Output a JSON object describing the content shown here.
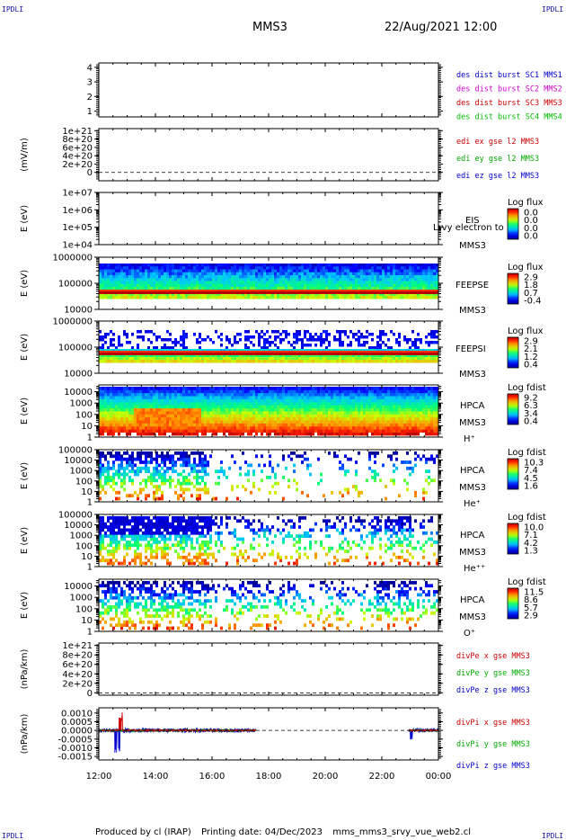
{
  "page": {
    "corner_tl": "IPDLI",
    "corner_tr": "IPDLI",
    "corner_bl": "IPDLI",
    "corner_br": "IPDLI",
    "title": "MMS3",
    "datetime": "22/Aug/2021 12:00",
    "footer_produced": "Produced by cl (IRAP)",
    "footer_printed": "Printing date: 04/Dec/2023",
    "footer_file": "mms_mms3_srvy_vue_web2.cl"
  },
  "chart_data": {
    "type": "multi-panel time series / spectrogram",
    "x_ticks": [
      "12:00",
      "14:00",
      "16:00",
      "18:00",
      "20:00",
      "22:00",
      "00:00"
    ],
    "xlim_hours": [
      12,
      24
    ],
    "panels": [
      {
        "id": "des-dist",
        "type": "line",
        "ylabel": "",
        "y_ticks": [
          "4",
          "3",
          "2",
          "1"
        ],
        "ylim": [
          0.6,
          4.3
        ],
        "right_labels": [
          {
            "text": "des dist burst SC1 MMS1",
            "color": "#0000cc"
          },
          {
            "text": "des dist burst SC2 MMS2",
            "color": "#cc00cc"
          },
          {
            "text": "des dist burst SC3 MMS3",
            "color": "#cc0000"
          },
          {
            "text": "des dist burst SC4 MMS4",
            "color": "#00bb00"
          }
        ]
      },
      {
        "id": "edi",
        "type": "line",
        "ylabel": "(mV/m)",
        "y_ticks": [
          "1e+21",
          "8e+20",
          "6e+20",
          "4e+20",
          "2e+20",
          "0"
        ],
        "ylim": [
          -2e+20,
          1.05e+21
        ],
        "zero_line": true,
        "right_labels": [
          {
            "text": "edi ex gse l2 MMS3",
            "color": "#cc0000"
          },
          {
            "text": "edi ey gse l2 MMS3",
            "color": "#00aa00"
          },
          {
            "text": "edi ez gse l2 MMS3",
            "color": "#0000cc"
          }
        ]
      },
      {
        "id": "eis",
        "type": "heatmap",
        "ylabel": "E (eV)",
        "y_ticks": [
          "1e+07",
          "1e+06",
          "1e+05",
          "1e+04"
        ],
        "log_y": true,
        "ylim": [
          10000,
          10000000
        ],
        "instrument": "EIS",
        "spacecraft": "MMS3",
        "species": "",
        "overlay": "Lrvy electron to",
        "colorbar_title": "Log flux",
        "colorbar_ticks": [
          "0.0",
          "0.0",
          "0.0",
          "0.0"
        ],
        "empty": true
      },
      {
        "id": "feepse",
        "type": "heatmap",
        "ylabel": "E (eV)",
        "y_ticks": [
          "1000000",
          "100000",
          "10000"
        ],
        "log_y": true,
        "ylim": [
          10000,
          1000000
        ],
        "instrument": "FEEPSE",
        "spacecraft": "MMS3",
        "species": "",
        "colorbar_title": "Log flux",
        "colorbar_ticks": [
          "2.9",
          "1.8",
          "0.7",
          "-0.4"
        ],
        "pattern": "feeps-e"
      },
      {
        "id": "feepsi",
        "type": "heatmap",
        "ylabel": "E (eV)",
        "y_ticks": [
          "1000000",
          "100000",
          "10000"
        ],
        "log_y": true,
        "ylim": [
          10000,
          1000000
        ],
        "instrument": "FEEPSI",
        "spacecraft": "MMS3",
        "species": "",
        "colorbar_title": "Log flux",
        "colorbar_ticks": [
          "2.9",
          "2.1",
          "1.2",
          "0.4"
        ],
        "pattern": "feeps-i"
      },
      {
        "id": "hpca-h",
        "type": "heatmap",
        "ylabel": "E (eV)",
        "y_ticks": [
          "10000",
          "1000",
          "100",
          "10",
          "1"
        ],
        "log_y": true,
        "ylim": [
          1,
          40000
        ],
        "instrument": "HPCA",
        "spacecraft": "MMS3",
        "species": "H⁺",
        "colorbar_title": "Log fdist",
        "colorbar_ticks": [
          "9.2",
          "6.3",
          "3.4",
          "0.4"
        ],
        "pattern": "hpca-h"
      },
      {
        "id": "hpca-he",
        "type": "heatmap",
        "ylabel": "E (eV)",
        "y_ticks": [
          "100000",
          "10000",
          "1000",
          "100",
          "10",
          "1"
        ],
        "log_y": true,
        "ylim": [
          1,
          100000
        ],
        "instrument": "HPCA",
        "spacecraft": "MMS3",
        "species": "He⁺",
        "colorbar_title": "Log fdist",
        "colorbar_ticks": [
          "10.3",
          "7.4",
          "4.5",
          "1.6"
        ],
        "pattern": "hpca-he"
      },
      {
        "id": "hpca-hepp",
        "type": "heatmap",
        "ylabel": "E (eV)",
        "y_ticks": [
          "100000",
          "10000",
          "1000",
          "100",
          "10",
          "1"
        ],
        "log_y": true,
        "ylim": [
          1,
          100000
        ],
        "instrument": "HPCA",
        "spacecraft": "MMS3",
        "species": "He⁺⁺",
        "colorbar_title": "Log fdist",
        "colorbar_ticks": [
          "10.0",
          "7.1",
          "4.2",
          "1.3"
        ],
        "pattern": "hpca-hepp"
      },
      {
        "id": "hpca-o",
        "type": "heatmap",
        "ylabel": "E (eV)",
        "y_ticks": [
          "10000",
          "1000",
          "100",
          "10",
          "1"
        ],
        "log_y": true,
        "ylim": [
          1,
          40000
        ],
        "instrument": "HPCA",
        "spacecraft": "MMS3",
        "species": "O⁺",
        "colorbar_title": "Log fdist",
        "colorbar_ticks": [
          "11.5",
          "8.6",
          "5.7",
          "2.9"
        ],
        "pattern": "hpca-o"
      },
      {
        "id": "divpe",
        "type": "line",
        "ylabel": "(nPa/km)",
        "y_ticks": [
          "1e+21",
          "8e+20",
          "6e+20",
          "4e+20",
          "2e+20",
          "0"
        ],
        "ylim": [
          -5e+19,
          1.05e+21
        ],
        "zero_line": true,
        "right_labels": [
          {
            "text": "divPe x gse MMS3",
            "color": "#cc0000"
          },
          {
            "text": "divPe y gse MMS3",
            "color": "#00aa00"
          },
          {
            "text": "divPe z gse MMS3",
            "color": "#0000cc"
          }
        ]
      },
      {
        "id": "divpi",
        "type": "line",
        "ylabel": "(nPa/km)",
        "y_ticks": [
          "0.0010",
          "0.0005",
          "0.0000",
          "-0.0005",
          "-0.0010",
          "-0.0015"
        ],
        "ylim": [
          -0.0017,
          0.0013
        ],
        "zero_line": true,
        "pattern": "divpi",
        "right_labels": [
          {
            "text": "divPi x gse MMS3",
            "color": "#cc0000"
          },
          {
            "text": "divPi y gse MMS3",
            "color": "#00aa00"
          },
          {
            "text": "divPi z gse MMS3",
            "color": "#0000cc"
          }
        ]
      }
    ]
  }
}
